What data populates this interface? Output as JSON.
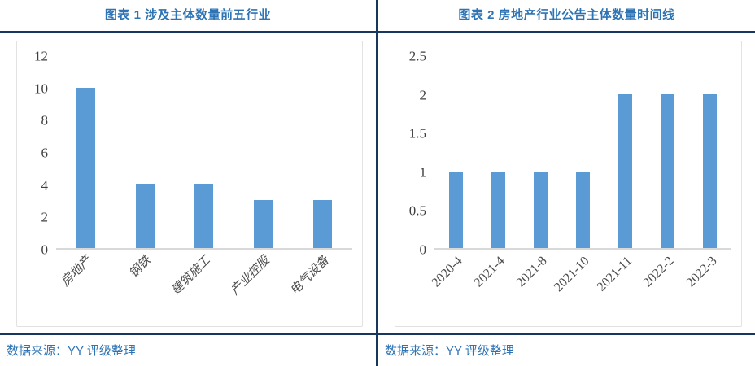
{
  "colors": {
    "title_blue": "#2E74B5",
    "source_blue": "#2E74B5",
    "divider_navy": "#17375E",
    "bar_blue": "#5B9BD5",
    "axis_text": "#3F3F3F",
    "axis_line": "#D9D9D9"
  },
  "panels": [
    {
      "title": "图表 1 涉及主体数量前五行业",
      "source": "数据来源：YY 评级整理"
    },
    {
      "title": "图表 2 房地产行业公告主体数量时间线",
      "source": "数据来源：YY 评级整理"
    }
  ],
  "chart_data": [
    {
      "type": "bar",
      "title": "图表 1 涉及主体数量前五行业",
      "categories": [
        "房地产",
        "钢铁",
        "建筑施工",
        "产业控股",
        "电气设备"
      ],
      "values": [
        10,
        4,
        4,
        3,
        3
      ],
      "xlabel": "",
      "ylabel": "",
      "ylim": [
        0,
        12
      ],
      "yticks": [
        0,
        2,
        4,
        6,
        8,
        10,
        12
      ],
      "bar_color": "#5B9BD5",
      "grid": false,
      "legend_position": "none"
    },
    {
      "type": "bar",
      "title": "图表 2 房地产行业公告主体数量时间线",
      "categories": [
        "2020-4",
        "2021-4",
        "2021-8",
        "2021-10",
        "2021-11",
        "2022-2",
        "2022-3"
      ],
      "values": [
        1,
        1,
        1,
        1,
        2,
        2,
        2
      ],
      "xlabel": "",
      "ylabel": "",
      "ylim": [
        0,
        2.5
      ],
      "yticks": [
        0,
        0.5,
        1,
        1.5,
        2,
        2.5
      ],
      "bar_color": "#5B9BD5",
      "grid": false,
      "legend_position": "none"
    }
  ]
}
